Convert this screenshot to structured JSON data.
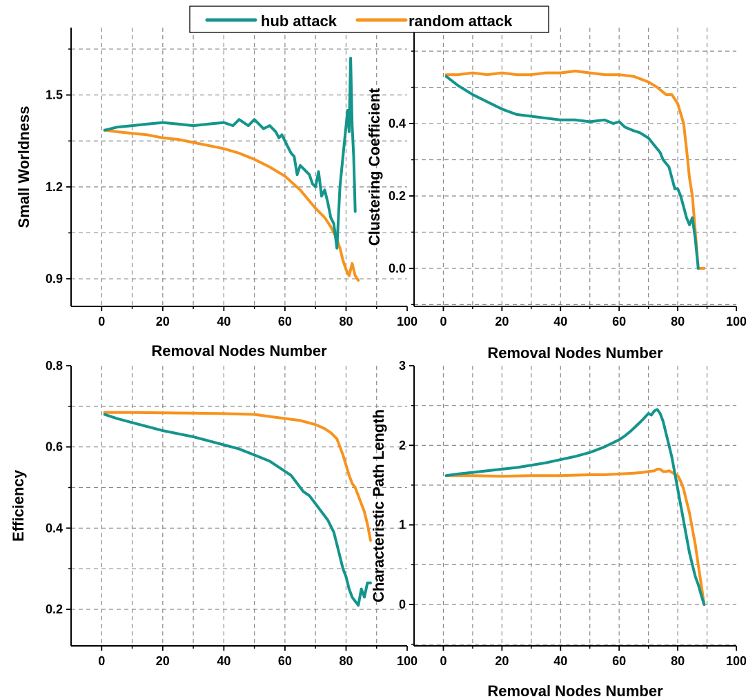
{
  "colors": {
    "hub_attack": "#14958c",
    "random_attack": "#f7931e",
    "grid": "#8a8a8a",
    "axis": "#000000"
  },
  "legend": {
    "items": [
      {
        "label": "hub attack",
        "color": "#14958c"
      },
      {
        "label": "random attack",
        "color": "#f7931e"
      }
    ]
  },
  "chart_data": [
    {
      "type": "line",
      "xlabel": "Removal Nodes Number",
      "ylabel": "Small Worldness",
      "xlim": [
        -10,
        100
      ],
      "ylim": [
        0.81,
        1.72
      ],
      "xticks": [
        0,
        20,
        40,
        60,
        80,
        100
      ],
      "xtick_labels": [
        "0",
        "20",
        "40",
        "60",
        "80",
        "100"
      ],
      "yticks": [
        0.9,
        1.2,
        1.5
      ],
      "ytick_labels": [
        "0.9",
        "1.2",
        "1.5"
      ],
      "grid": true,
      "series": [
        {
          "name": "hub attack",
          "x": [
            1,
            5,
            10,
            15,
            20,
            25,
            30,
            35,
            40,
            43,
            45,
            48,
            50,
            53,
            55,
            57,
            58,
            59,
            60,
            61,
            62,
            63,
            64,
            65,
            66,
            67,
            68,
            69,
            70,
            71,
            72,
            73,
            74,
            75,
            76,
            77,
            78,
            79,
            80,
            80.5,
            81,
            81.5,
            82,
            82.5,
            83
          ],
          "y": [
            1.385,
            1.395,
            1.4,
            1.405,
            1.41,
            1.405,
            1.4,
            1.405,
            1.41,
            1.4,
            1.42,
            1.4,
            1.42,
            1.39,
            1.4,
            1.38,
            1.36,
            1.37,
            1.35,
            1.33,
            1.31,
            1.3,
            1.24,
            1.27,
            1.26,
            1.25,
            1.24,
            1.21,
            1.2,
            1.25,
            1.17,
            1.19,
            1.15,
            1.1,
            1.08,
            1.0,
            1.2,
            1.3,
            1.4,
            1.45,
            1.38,
            1.62,
            1.4,
            1.3,
            1.12
          ]
        },
        {
          "name": "random attack",
          "x": [
            1,
            5,
            10,
            15,
            20,
            25,
            30,
            35,
            40,
            45,
            50,
            55,
            60,
            65,
            70,
            73,
            75,
            77,
            78,
            79,
            80,
            81,
            82,
            83,
            84
          ],
          "y": [
            1.385,
            1.38,
            1.375,
            1.37,
            1.36,
            1.355,
            1.345,
            1.335,
            1.325,
            1.31,
            1.29,
            1.265,
            1.235,
            1.19,
            1.13,
            1.1,
            1.07,
            1.03,
            1.0,
            0.96,
            0.93,
            0.91,
            0.95,
            0.91,
            0.895
          ]
        }
      ]
    },
    {
      "type": "line",
      "xlabel": "Removal Nodes Number",
      "ylabel": "Clustering Coefficient",
      "xlim": [
        -10,
        100
      ],
      "ylim": [
        -0.105,
        0.665
      ],
      "xticks": [
        0,
        20,
        40,
        60,
        80,
        100
      ],
      "xtick_labels": [
        "0",
        "20",
        "40",
        "60",
        "80",
        "100"
      ],
      "yticks": [
        0.0,
        0.2,
        0.4
      ],
      "ytick_labels": [
        "0.0",
        "0.2",
        "0.4"
      ],
      "grid": true,
      "series": [
        {
          "name": "hub attack",
          "x": [
            1,
            5,
            10,
            15,
            20,
            25,
            30,
            35,
            40,
            45,
            50,
            55,
            58,
            60,
            62,
            65,
            67,
            70,
            72,
            74,
            75,
            77,
            78,
            79,
            80,
            81,
            82,
            83,
            84,
            85,
            86,
            87
          ],
          "y": [
            0.53,
            0.505,
            0.48,
            0.46,
            0.44,
            0.425,
            0.42,
            0.415,
            0.41,
            0.41,
            0.405,
            0.41,
            0.4,
            0.405,
            0.39,
            0.38,
            0.375,
            0.36,
            0.34,
            0.32,
            0.3,
            0.28,
            0.25,
            0.22,
            0.22,
            0.2,
            0.17,
            0.14,
            0.12,
            0.14,
            0.08,
            0.0
          ]
        },
        {
          "name": "random attack",
          "x": [
            1,
            5,
            10,
            15,
            20,
            25,
            30,
            35,
            40,
            45,
            50,
            55,
            60,
            65,
            70,
            73,
            76,
            78,
            80,
            82,
            83,
            84,
            85,
            86,
            87,
            88,
            89
          ],
          "y": [
            0.535,
            0.535,
            0.54,
            0.535,
            0.54,
            0.535,
            0.535,
            0.54,
            0.54,
            0.545,
            0.54,
            0.535,
            0.535,
            0.53,
            0.515,
            0.5,
            0.48,
            0.48,
            0.455,
            0.4,
            0.33,
            0.25,
            0.2,
            0.1,
            0.0,
            0.0,
            0.0
          ]
        }
      ]
    },
    {
      "type": "line",
      "xlabel": "",
      "ylabel": "Efficiency",
      "xlim": [
        -10,
        100
      ],
      "ylim": [
        0.11,
        0.8
      ],
      "xticks": [
        0,
        20,
        40,
        60,
        80,
        100
      ],
      "xtick_labels": [
        "0",
        "20",
        "40",
        "60",
        "80",
        "100"
      ],
      "yticks": [
        0.2,
        0.4,
        0.6,
        0.8
      ],
      "ytick_labels": [
        "0.2",
        "0.4",
        "0.6",
        "0.8"
      ],
      "grid": true,
      "series": [
        {
          "name": "hub attack",
          "x": [
            1,
            5,
            10,
            20,
            30,
            40,
            45,
            50,
            55,
            60,
            62,
            64,
            66,
            68,
            70,
            72,
            74,
            76,
            77,
            78,
            79,
            80,
            81,
            82,
            83,
            84,
            85,
            86,
            87,
            88
          ],
          "y": [
            0.68,
            0.67,
            0.66,
            0.64,
            0.625,
            0.605,
            0.595,
            0.58,
            0.565,
            0.54,
            0.53,
            0.51,
            0.49,
            0.48,
            0.46,
            0.44,
            0.42,
            0.39,
            0.36,
            0.33,
            0.3,
            0.28,
            0.25,
            0.23,
            0.22,
            0.21,
            0.25,
            0.23,
            0.265,
            0.265
          ]
        },
        {
          "name": "random attack",
          "x": [
            1,
            5,
            10,
            20,
            30,
            40,
            50,
            55,
            60,
            65,
            70,
            73,
            75,
            77,
            78,
            79,
            80,
            81,
            82,
            83,
            84,
            85,
            86,
            87,
            88
          ],
          "y": [
            0.685,
            0.685,
            0.685,
            0.684,
            0.683,
            0.682,
            0.68,
            0.675,
            0.67,
            0.665,
            0.655,
            0.645,
            0.635,
            0.62,
            0.6,
            0.58,
            0.555,
            0.53,
            0.51,
            0.5,
            0.48,
            0.46,
            0.44,
            0.41,
            0.37
          ]
        }
      ]
    },
    {
      "type": "line",
      "xlabel": "Removal Nodes Number",
      "ylabel": "Characteristic Path Length",
      "xlim": [
        -10,
        100
      ],
      "ylim": [
        -0.52,
        3.0
      ],
      "xticks": [
        0,
        20,
        40,
        60,
        80,
        100
      ],
      "xtick_labels": [
        "0",
        "20",
        "40",
        "60",
        "80",
        "100"
      ],
      "yticks": [
        0,
        1,
        2,
        3
      ],
      "ytick_labels": [
        "0",
        "1",
        "2",
        "3"
      ],
      "grid": true,
      "series": [
        {
          "name": "hub attack",
          "x": [
            1,
            5,
            10,
            15,
            20,
            25,
            30,
            35,
            40,
            45,
            50,
            55,
            60,
            62,
            64,
            66,
            68,
            70,
            71,
            72,
            73,
            74,
            75,
            76,
            77,
            78,
            79,
            80,
            81,
            82,
            83,
            84,
            85,
            86,
            87,
            88,
            89
          ],
          "y": [
            1.62,
            1.64,
            1.66,
            1.68,
            1.7,
            1.72,
            1.75,
            1.78,
            1.82,
            1.86,
            1.91,
            1.98,
            2.07,
            2.12,
            2.18,
            2.25,
            2.32,
            2.4,
            2.38,
            2.43,
            2.45,
            2.4,
            2.3,
            2.15,
            2.0,
            1.85,
            1.65,
            1.45,
            1.25,
            1.05,
            0.85,
            0.65,
            0.5,
            0.35,
            0.25,
            0.12,
            0.0
          ]
        },
        {
          "name": "random attack",
          "x": [
            1,
            10,
            20,
            30,
            40,
            50,
            55,
            60,
            65,
            68,
            70,
            72,
            73,
            74,
            75,
            76,
            77,
            78,
            80,
            81,
            82,
            83,
            84,
            85,
            86,
            87,
            88,
            89
          ],
          "y": [
            1.62,
            1.62,
            1.61,
            1.62,
            1.62,
            1.63,
            1.63,
            1.64,
            1.65,
            1.66,
            1.67,
            1.68,
            1.7,
            1.7,
            1.67,
            1.67,
            1.68,
            1.66,
            1.62,
            1.55,
            1.45,
            1.3,
            1.15,
            0.95,
            0.75,
            0.5,
            0.25,
            0.0
          ]
        }
      ]
    }
  ]
}
